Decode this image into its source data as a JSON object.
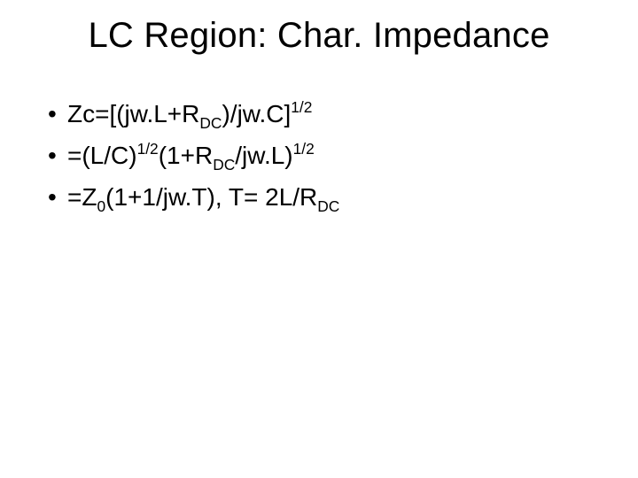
{
  "slide": {
    "title": "LC Region: Char. Impedance",
    "title_fontsize": 40,
    "body_fontsize": 28,
    "colors": {
      "background": "#ffffff",
      "text": "#000000"
    },
    "bullets": [
      {
        "parts": [
          {
            "t": "Zc=[(jw.L+R"
          },
          {
            "t": "DC",
            "style": "sub"
          },
          {
            "t": ")/jw.C]"
          },
          {
            "t": "1/2",
            "style": "sup"
          }
        ]
      },
      {
        "parts": [
          {
            "t": "=(L/C)"
          },
          {
            "t": "1/2",
            "style": "sup"
          },
          {
            "t": "(1+R"
          },
          {
            "t": "DC",
            "style": "sub"
          },
          {
            "t": "/jw.L)"
          },
          {
            "t": "1/2",
            "style": "sup"
          }
        ]
      },
      {
        "parts": [
          {
            "t": "=Z"
          },
          {
            "t": "0",
            "style": "sub"
          },
          {
            "t": "(1+1/jw.T), T= 2L/R"
          },
          {
            "t": "DC",
            "style": "sub"
          }
        ]
      }
    ],
    "bullet_marker": "•"
  }
}
